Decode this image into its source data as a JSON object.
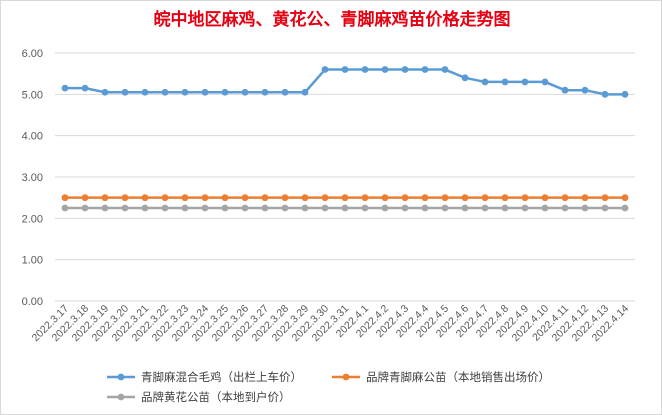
{
  "chart_data": {
    "type": "line",
    "title": "皖中地区麻鸡、黄花公、青脚麻鸡苗价格走势图",
    "title_color": "#e60012",
    "xlabel": "",
    "ylabel": "",
    "ylim": [
      0,
      6
    ],
    "yticks": [
      "0.00",
      "1.00",
      "2.00",
      "3.00",
      "4.00",
      "5.00",
      "6.00"
    ],
    "grid": true,
    "legend_position": "bottom",
    "categories": [
      "2022.3.17",
      "2022.3.18",
      "2022.3.19",
      "2022.3.20",
      "2022.3.21",
      "2022.3.22",
      "2022.3.23",
      "2022.3.24",
      "2022.3.25",
      "2022.3.26",
      "2022.3.27",
      "2022.3.28",
      "2022.3.29",
      "2022.3.30",
      "2022.3.31",
      "2022.4.1",
      "2022.4.2",
      "2022.4.3",
      "2022.4.4",
      "2022.4.5",
      "2022.4.6",
      "2022.4.7",
      "2022.4.8",
      "2022.4.9",
      "2022.4.10",
      "2022.4.11",
      "2022.4.12",
      "2022.4.13",
      "2022.4.14"
    ],
    "series": [
      {
        "name": "青脚麻混合毛鸡（出栏上车价）",
        "color": "#5b9bd5",
        "values": [
          5.15,
          5.15,
          5.05,
          5.05,
          5.05,
          5.05,
          5.05,
          5.05,
          5.05,
          5.05,
          5.05,
          5.05,
          5.05,
          5.6,
          5.6,
          5.6,
          5.6,
          5.6,
          5.6,
          5.6,
          5.4,
          5.3,
          5.3,
          5.3,
          5.3,
          5.1,
          5.1,
          5.0,
          5.0
        ]
      },
      {
        "name": "品牌青脚麻公苗（本地销售出场价）",
        "color": "#ed7d31",
        "values": [
          2.5,
          2.5,
          2.5,
          2.5,
          2.5,
          2.5,
          2.5,
          2.5,
          2.5,
          2.5,
          2.5,
          2.5,
          2.5,
          2.5,
          2.5,
          2.5,
          2.5,
          2.5,
          2.5,
          2.5,
          2.5,
          2.5,
          2.5,
          2.5,
          2.5,
          2.5,
          2.5,
          2.5,
          2.5
        ]
      },
      {
        "name": "品牌黄花公苗（本地到户价）",
        "color": "#a5a5a5",
        "values": [
          2.25,
          2.25,
          2.25,
          2.25,
          2.25,
          2.25,
          2.25,
          2.25,
          2.25,
          2.25,
          2.25,
          2.25,
          2.25,
          2.25,
          2.25,
          2.25,
          2.25,
          2.25,
          2.25,
          2.25,
          2.25,
          2.25,
          2.25,
          2.25,
          2.25,
          2.25,
          2.25,
          2.25,
          2.25
        ]
      }
    ]
  }
}
